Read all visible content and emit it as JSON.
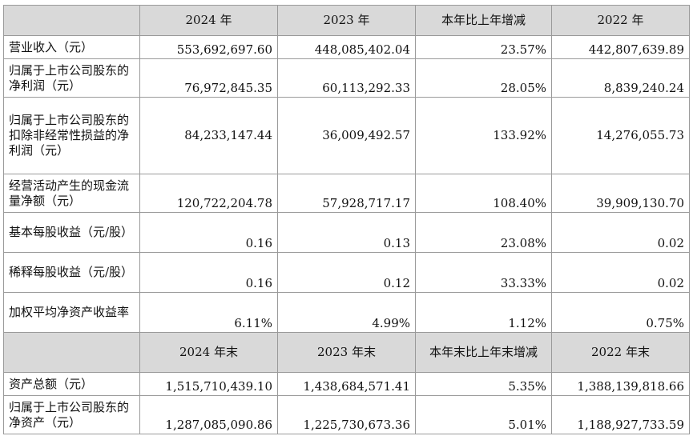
{
  "header1": [
    "2024 年",
    "2023 年",
    "本年比上年增减",
    "2022 年"
  ],
  "rows1": [
    {
      "label": "营业收入（元）",
      "values": [
        "553,692,697.60",
        "448,085,402.04",
        "23.57%",
        "442,807,639.89"
      ]
    },
    {
      "label": "归属于上市公司股东的净利润（元）",
      "values": [
        "76,972,845.35",
        "60,113,292.33",
        "28.05%",
        "8,839,240.24"
      ]
    },
    {
      "label": "归属于上市公司股东的扣除非经常性损益的净利润（元）",
      "values": [
        "84,233,147.44",
        "36,009,492.57",
        "133.92%",
        "14,276,055.73"
      ]
    },
    {
      "label": "经营活动产生的现金流量净额（元）",
      "values": [
        "120,722,204.78",
        "57,928,717.17",
        "108.40%",
        "39,909,130.70"
      ]
    },
    {
      "label": "基本每股收益（元/股）",
      "values": [
        "0.16",
        "0.13",
        "23.08%",
        "0.02"
      ]
    },
    {
      "label": "稀释每股收益（元/股）",
      "values": [
        "0.16",
        "0.12",
        "33.33%",
        "0.02"
      ]
    },
    {
      "label": "加权平均净资产收益率",
      "values": [
        "6.11%",
        "4.99%",
        "1.12%",
        "0.75%"
      ]
    }
  ],
  "header2": [
    "2024 年末",
    "2023 年末",
    "本年末比上年末增减",
    "2022 年末"
  ],
  "rows2": [
    {
      "label": "资产总额（元）",
      "values": [
        "1,515,710,439.10",
        "1,438,684,571.41",
        "5.35%",
        "1,388,139,818.66"
      ]
    },
    {
      "label": "归属于上市公司股东的净资产（元）",
      "values": [
        "1,287,085,090.86",
        "1,225,730,673.36",
        "5.01%",
        "1,188,927,733.59"
      ]
    }
  ]
}
